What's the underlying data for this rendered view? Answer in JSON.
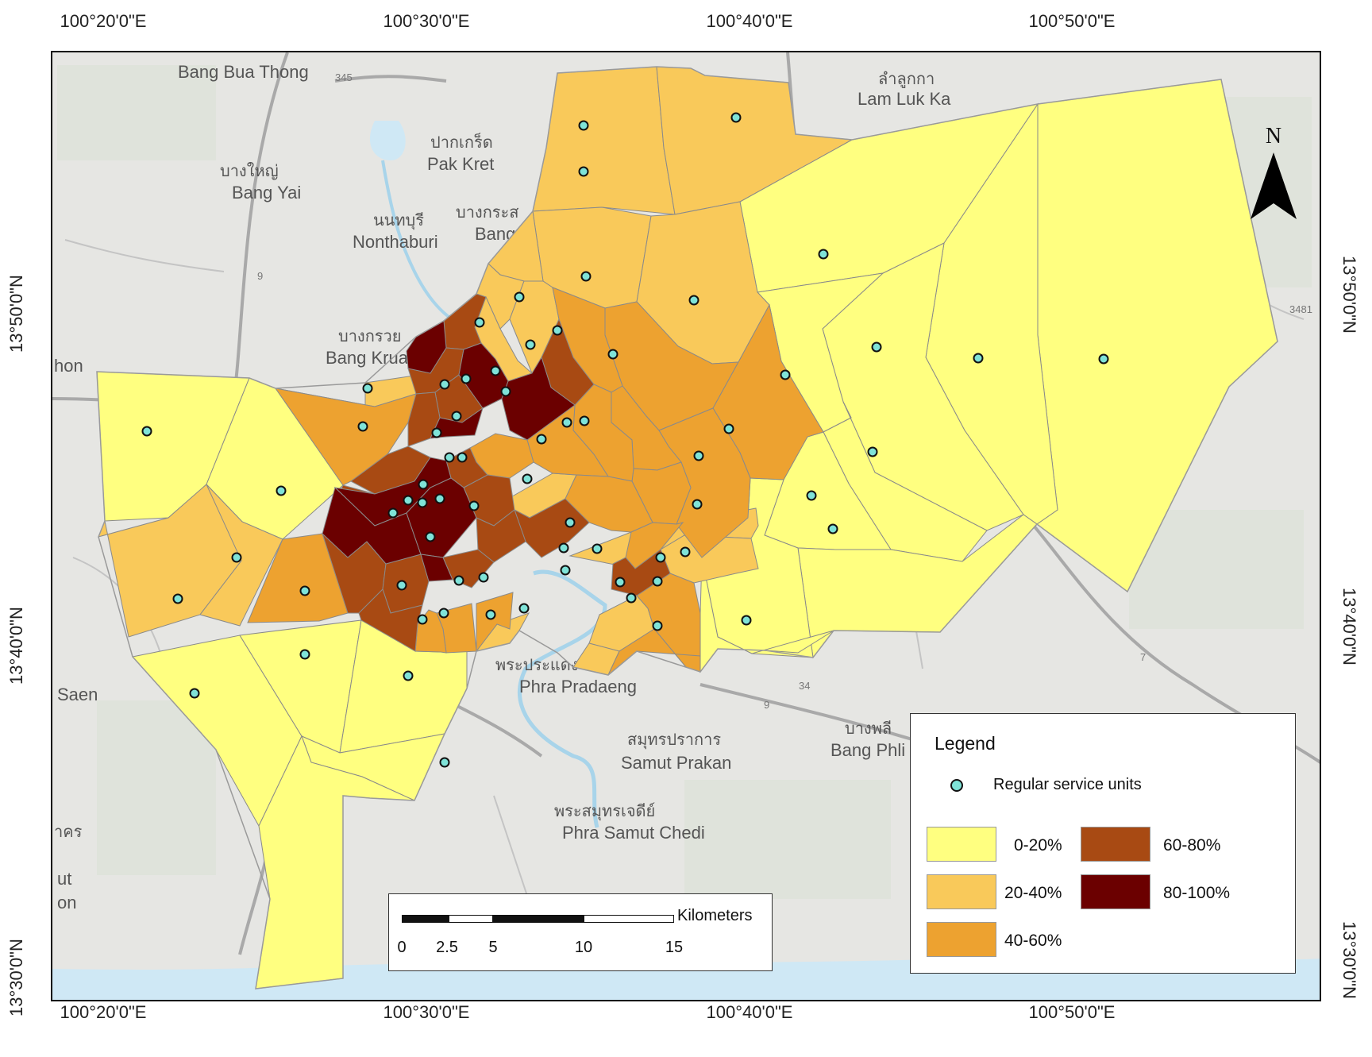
{
  "coordinates": {
    "top": [
      "100°20'0\"E",
      "100°30'0\"E",
      "100°40'0\"E",
      "100°50'0\"E"
    ],
    "bottom": [
      "100°20'0\"E",
      "100°30'0\"E",
      "100°40'0\"E",
      "100°50'0\"E"
    ],
    "left": [
      "13°50'0\"N",
      "13°40'0\"N",
      "13°30'0\"N"
    ],
    "right": [
      "13°50'0\"N",
      "13°40'0\"N",
      "13°30'0\"N"
    ]
  },
  "north_arrow": {
    "label": "N"
  },
  "places": [
    {
      "th": "",
      "en": "Bang Bua Thong"
    },
    {
      "th": "บางใหญ่",
      "en": "Bang Yai"
    },
    {
      "th": "นนทบุรี",
      "en": "Nonthaburi"
    },
    {
      "th": "ปากเกร็ด",
      "en": "Pak Kret"
    },
    {
      "th": "บางกระส",
      "en": "Bang Kraso"
    },
    {
      "th": "บางกรวย",
      "en": "Bang Kruai"
    },
    {
      "th": "ลำลูกกา",
      "en": "Lam Luk Ka"
    },
    {
      "th": "พระประแดง",
      "en": "Phra Pradaeng"
    },
    {
      "th": "สมุทรปราการ",
      "en": "Samut Prakan"
    },
    {
      "th": "พระสมุทรเจดีย์",
      "en": "Phra Samut Chedi"
    },
    {
      "th": "บางพลี",
      "en": "Bang Phli"
    }
  ],
  "edge_fragments": [
    "hon",
    "Saen",
    "าคร",
    "ut",
    "on"
  ],
  "road_labels": [
    "345",
    "9",
    "34",
    "9",
    "3481",
    "7"
  ],
  "legend": {
    "title": "Legend",
    "point_label": "Regular service units",
    "classes": [
      {
        "label": "0-20%",
        "color": "#ffff80"
      },
      {
        "label": "20-40%",
        "color": "#f9c95a"
      },
      {
        "label": "40-60%",
        "color": "#eda230"
      },
      {
        "label": "60-80%",
        "color": "#a84a13"
      },
      {
        "label": "80-100%",
        "color": "#6b0000"
      }
    ]
  },
  "scalebar": {
    "units": "Kilometers",
    "ticks": [
      "0",
      "2.5",
      "5",
      "10",
      "15"
    ]
  }
}
